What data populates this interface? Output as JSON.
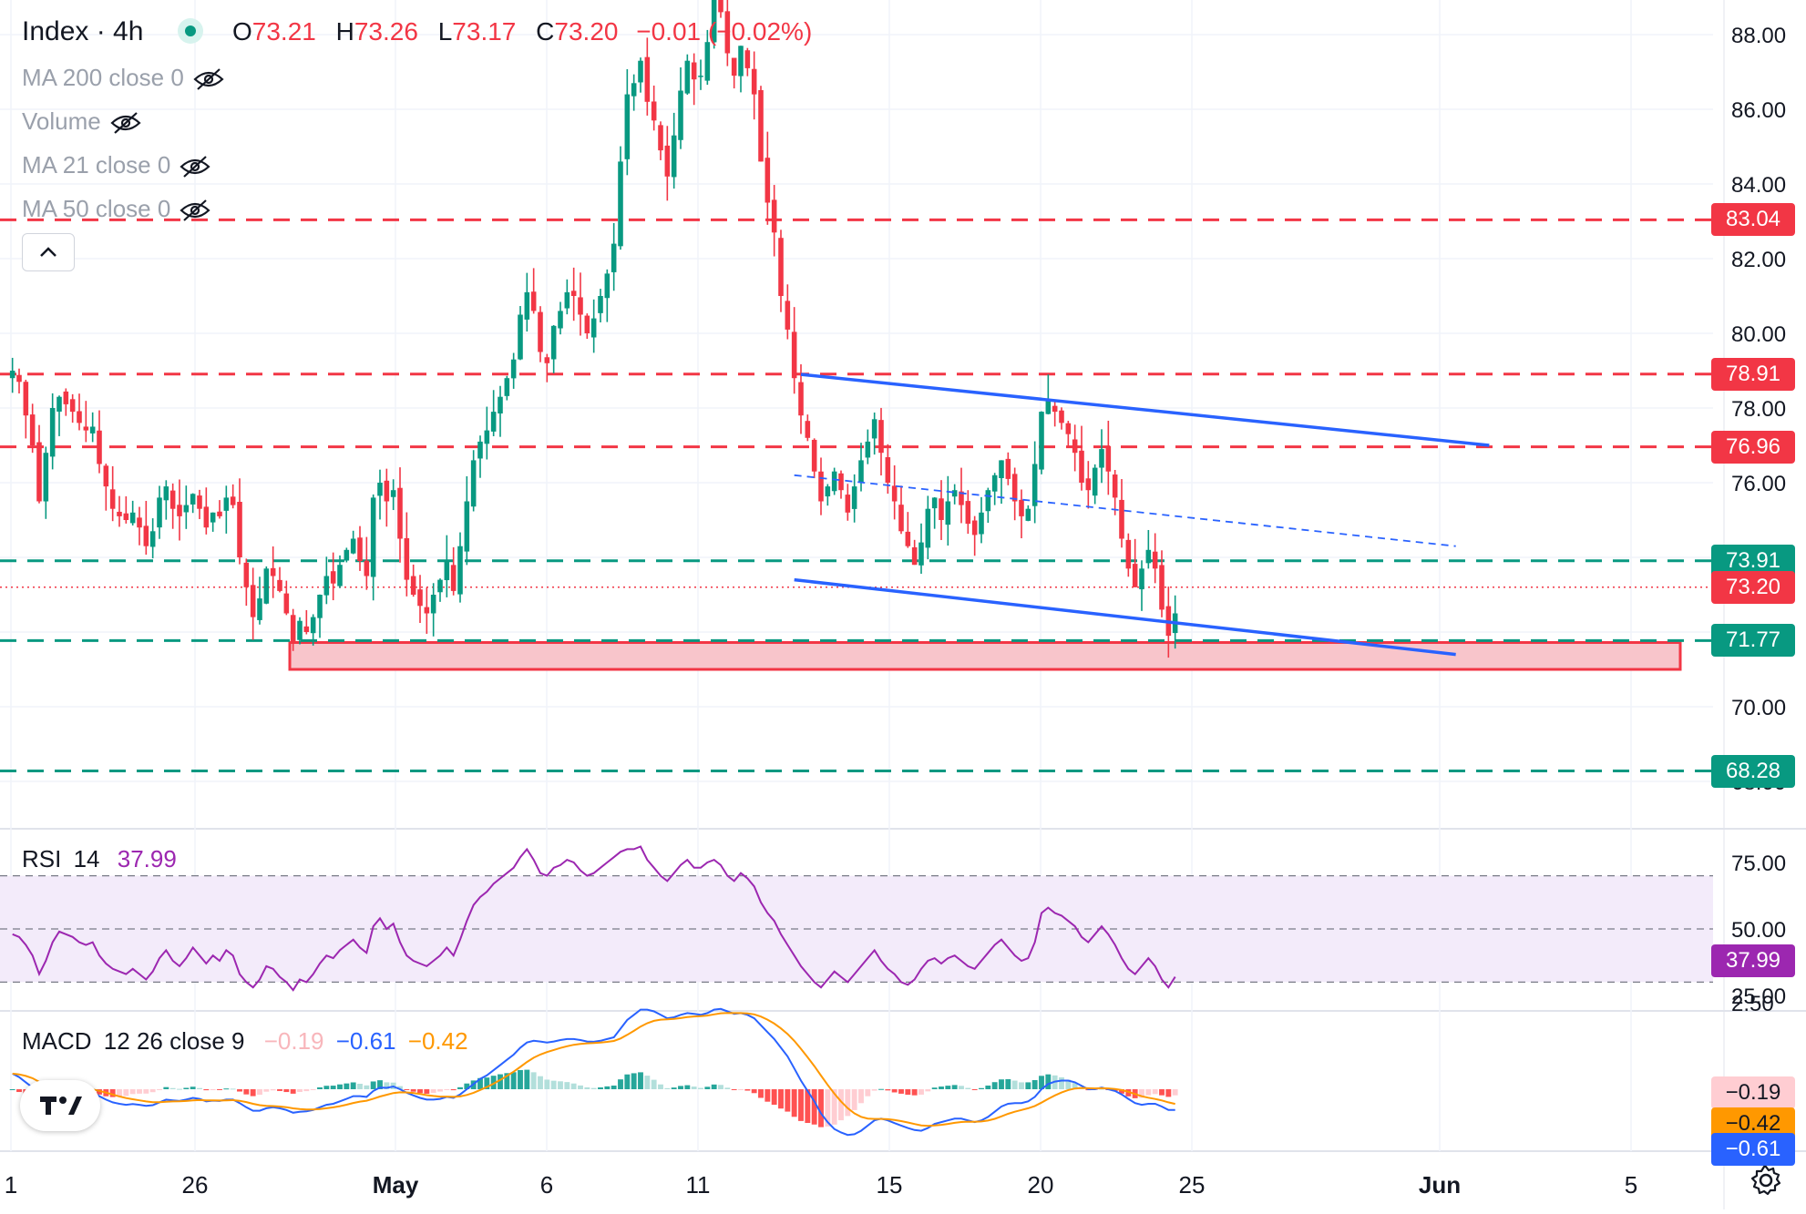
{
  "header": {
    "symbol": "Index · 4h",
    "ohlc": {
      "o_label": "O",
      "o_value": "73.21",
      "h_label": "H",
      "h_value": "73.26",
      "l_label": "L",
      "l_value": "73.17",
      "c_label": "C",
      "c_value": "73.20",
      "change": "−0.01 (−0.02%)"
    },
    "indicators": [
      {
        "label": "MA 200 close 0",
        "icon": "eye-off-icon"
      },
      {
        "label": "Volume",
        "icon": "eye-off-icon"
      },
      {
        "label": "MA 21 close 0",
        "icon": "eye-off-icon"
      },
      {
        "label": "MA 50 close 0",
        "icon": "eye-off-icon"
      }
    ],
    "collapse_icon": "chevron-up-icon"
  },
  "colors": {
    "up": "#089981",
    "down": "#f23645",
    "trendline": "#2962ff",
    "red_level": "#f23645",
    "green_level": "#089981",
    "rsi": "#9c27b0",
    "macd": "#2962ff",
    "signal": "#ff9800",
    "zone_fill": "#f8c5cb"
  },
  "chart_data": [
    {
      "type": "candlestick",
      "name": "price",
      "x_ticks": [
        "1",
        "26",
        "May",
        "6",
        "11",
        "15",
        "20",
        "25",
        "Jun",
        "5"
      ],
      "y_ticks": [
        "88.00",
        "86.00",
        "84.00",
        "82.00",
        "80.00",
        "78.00",
        "76.00",
        "74.00",
        "72.00",
        "70.00",
        "68.00"
      ],
      "ylim": [
        67.0,
        89.0
      ],
      "last_price": "73.20",
      "last_price_value": 73.2,
      "resistance_levels": [
        {
          "label": "83.04",
          "value": 83.04
        },
        {
          "label": "78.91",
          "value": 78.91
        },
        {
          "label": "76.96",
          "value": 76.96
        }
      ],
      "support_levels": [
        {
          "label": "73.91",
          "value": 73.91
        },
        {
          "label": "71.77",
          "value": 71.77
        },
        {
          "label": "68.28",
          "value": 68.28
        }
      ],
      "support_zone": {
        "top": 71.72,
        "bottom": 71.0,
        "from_bar": 38,
        "to_bar": 222
      },
      "channel": {
        "upper": {
          "from_bar": 118,
          "from_value": 78.9,
          "to_bar": 221,
          "to_value": 77.0
        },
        "lower": {
          "from_bar": 117,
          "from_value": 73.4,
          "to_bar": 216,
          "to_value": 71.4
        },
        "mid": {
          "from_bar": 117,
          "from_value": 76.2,
          "to_bar": 216,
          "to_value": 74.3
        }
      },
      "bar_count": 240,
      "closes": [
        79.0,
        78.7,
        77.8,
        77.0,
        75.5,
        76.8,
        78.0,
        78.3,
        78.1,
        77.9,
        77.6,
        77.4,
        77.5,
        76.5,
        75.9,
        75.3,
        75.1,
        75.0,
        75.2,
        74.8,
        74.3,
        74.7,
        75.6,
        75.9,
        75.3,
        75.1,
        75.4,
        75.7,
        75.3,
        74.8,
        75.2,
        75.1,
        75.6,
        75.4,
        74.0,
        73.2,
        72.4,
        72.9,
        73.7,
        73.5,
        73.1,
        72.5,
        71.7,
        72.3,
        72.0,
        72.4,
        73.0,
        73.5,
        73.3,
        73.8,
        74.2,
        74.5,
        73.9,
        73.5,
        75.6,
        76.0,
        75.5,
        75.8,
        74.5,
        73.4,
        73.0,
        72.7,
        72.5,
        73.0,
        73.4,
        73.9,
        73.1,
        74.3,
        75.5,
        76.6,
        77.1,
        77.4,
        77.9,
        78.3,
        78.8,
        79.3,
        80.5,
        81.1,
        80.6,
        79.5,
        79.2,
        80.2,
        80.6,
        81.1,
        81.0,
        80.5,
        80.0,
        80.4,
        81.0,
        81.6,
        82.4,
        84.6,
        86.4,
        86.7,
        87.3,
        86.2,
        85.7,
        84.9,
        84.2,
        85.3,
        86.5,
        87.3,
        86.8,
        86.9,
        87.8,
        89.0,
        88.6,
        87.5,
        86.9,
        87.7,
        87.1,
        86.4,
        84.6,
        83.5,
        82.7,
        81.0,
        80.1,
        78.8,
        77.8,
        77.2,
        76.3,
        75.5,
        75.9,
        76.3,
        75.8,
        75.2,
        75.9,
        76.6,
        77.1,
        77.7,
        76.8,
        76.0,
        75.5,
        74.7,
        74.3,
        73.8,
        74.4,
        75.3,
        75.6,
        75.0,
        75.5,
        75.8,
        75.4,
        74.9,
        74.6,
        75.2,
        75.8,
        76.2,
        76.6,
        76.1,
        75.5,
        75.1,
        75.3,
        76.5,
        77.9,
        78.2,
        77.9,
        77.6,
        77.3,
        76.8,
        76.0,
        75.8,
        76.4,
        76.9,
        76.3,
        75.6,
        74.5,
        73.7,
        73.2,
        73.7,
        74.2,
        73.7,
        72.6,
        71.9,
        72.5,
        73.6,
        74.8,
        75.3,
        75.6,
        75.8,
        75.5,
        75.3,
        75.4,
        75.6,
        75.9,
        75.5,
        75.1,
        75.4,
        75.9,
        75.3,
        75.0,
        74.8,
        75.1,
        75.9,
        76.5,
        76.9,
        76.2,
        75.7,
        75.1,
        74.8,
        74.3,
        73.9,
        73.5,
        73.2,
        73.2,
        73.4,
        73.2,
        73.2,
        73.2,
        73.2,
        73.2,
        73.2,
        73.2,
        73.2,
        73.2,
        73.2,
        73.2,
        73.2,
        73.2,
        73.2,
        73.2,
        73.2,
        73.2,
        73.2,
        73.2,
        73.2,
        73.2,
        73.2,
        73.2,
        73.2,
        73.2,
        73.2,
        73.2,
        73.2,
        73.2,
        73.2,
        73.2
      ]
    },
    {
      "type": "line",
      "name": "RSI 14",
      "label": "RSI",
      "length": "14",
      "value": "37.99",
      "y_ticks": [
        "75.00",
        "50.00",
        "25.00"
      ],
      "ylim": [
        20,
        85
      ],
      "bands": [
        70,
        50,
        30
      ],
      "values": [
        48,
        47,
        44,
        40,
        33,
        38,
        45,
        49,
        48,
        47,
        45,
        44,
        45,
        40,
        37,
        35,
        34,
        33,
        35,
        33,
        31,
        34,
        39,
        42,
        38,
        36,
        39,
        43,
        40,
        37,
        40,
        38,
        42,
        40,
        33,
        30,
        28,
        31,
        36,
        35,
        32,
        30,
        27,
        31,
        30,
        33,
        37,
        40,
        39,
        42,
        44,
        46,
        43,
        41,
        51,
        54,
        50,
        52,
        45,
        40,
        38,
        37,
        36,
        38,
        40,
        43,
        40,
        46,
        53,
        59,
        62,
        64,
        67,
        69,
        71,
        73,
        77,
        80,
        76,
        71,
        70,
        73,
        74,
        76,
        75,
        72,
        70,
        71,
        73,
        75,
        77,
        79,
        80,
        80,
        81,
        76,
        73,
        70,
        68,
        71,
        74,
        76,
        73,
        73,
        75,
        76,
        74,
        70,
        68,
        71,
        69,
        66,
        60,
        56,
        53,
        48,
        44,
        40,
        36,
        33,
        30,
        28,
        31,
        34,
        32,
        30,
        33,
        36,
        39,
        42,
        38,
        35,
        33,
        30,
        29,
        31,
        35,
        38,
        39,
        37,
        39,
        40,
        38,
        36,
        35,
        38,
        41,
        44,
        46,
        43,
        40,
        38,
        39,
        45,
        56,
        58,
        56,
        55,
        53,
        51,
        47,
        45,
        48,
        51,
        48,
        44,
        39,
        35,
        33,
        36,
        39,
        36,
        31,
        28,
        32,
        38,
        45,
        48,
        49,
        50,
        49,
        48,
        49,
        50,
        51,
        49,
        47,
        48,
        51,
        48,
        46,
        45,
        47,
        52,
        58,
        61,
        56,
        53,
        49,
        47,
        44,
        42,
        40,
        38,
        38,
        39,
        38,
        38,
        38,
        38,
        38,
        38,
        38,
        38,
        38,
        38,
        38,
        38,
        38,
        38,
        38,
        38,
        38,
        38,
        38,
        38,
        38,
        38,
        38,
        38,
        38,
        38,
        38,
        38,
        38,
        38,
        38,
        38,
        38,
        38,
        38
      ]
    },
    {
      "type": "bar+line",
      "name": "MACD 12 26 close 9",
      "label": "MACD",
      "params": "12 26 close 9",
      "hist_value": "−0.19",
      "macd_value": "−0.61",
      "signal_value": "−0.42",
      "y_ticks": [
        "2.50"
      ],
      "ylim": [
        -1.8,
        2.8
      ],
      "macd": [
        0.45,
        0.35,
        0.2,
        0.05,
        -0.2,
        -0.25,
        -0.15,
        -0.05,
        0.0,
        0.02,
        0.0,
        -0.05,
        -0.08,
        -0.2,
        -0.3,
        -0.38,
        -0.42,
        -0.45,
        -0.43,
        -0.45,
        -0.48,
        -0.46,
        -0.38,
        -0.3,
        -0.32,
        -0.34,
        -0.3,
        -0.25,
        -0.28,
        -0.35,
        -0.33,
        -0.34,
        -0.3,
        -0.3,
        -0.4,
        -0.52,
        -0.62,
        -0.62,
        -0.55,
        -0.52,
        -0.55,
        -0.6,
        -0.68,
        -0.65,
        -0.64,
        -0.6,
        -0.52,
        -0.45,
        -0.42,
        -0.35,
        -0.28,
        -0.2,
        -0.2,
        -0.22,
        -0.05,
        0.05,
        0.04,
        0.08,
        0.0,
        -0.1,
        -0.18,
        -0.25,
        -0.3,
        -0.3,
        -0.28,
        -0.22,
        -0.25,
        -0.15,
        0.0,
        0.15,
        0.3,
        0.4,
        0.55,
        0.7,
        0.85,
        1.0,
        1.2,
        1.35,
        1.4,
        1.38,
        1.35,
        1.38,
        1.42,
        1.45,
        1.45,
        1.42,
        1.38,
        1.37,
        1.4,
        1.45,
        1.5,
        1.75,
        2.0,
        2.15,
        2.3,
        2.3,
        2.25,
        2.15,
        2.05,
        2.08,
        2.15,
        2.2,
        2.18,
        2.15,
        2.2,
        2.3,
        2.32,
        2.25,
        2.18,
        2.2,
        2.15,
        2.05,
        1.85,
        1.65,
        1.45,
        1.2,
        0.95,
        0.6,
        0.25,
        -0.05,
        -0.35,
        -0.7,
        -0.95,
        -1.15,
        -1.25,
        -1.32,
        -1.3,
        -1.2,
        -1.05,
        -0.9,
        -0.85,
        -0.9,
        -0.98,
        -1.05,
        -1.12,
        -1.18,
        -1.2,
        -1.12,
        -1.0,
        -0.95,
        -0.9,
        -0.85,
        -0.85,
        -0.9,
        -0.95,
        -0.9,
        -0.8,
        -0.65,
        -0.5,
        -0.42,
        -0.4,
        -0.4,
        -0.35,
        -0.22,
        0.0,
        0.15,
        0.22,
        0.25,
        0.25,
        0.2,
        0.1,
        0.0,
        0.0,
        0.05,
        0.0,
        -0.05,
        -0.15,
        -0.28,
        -0.4,
        -0.45,
        -0.42,
        -0.42,
        -0.5,
        -0.6,
        -0.6,
        -0.5,
        -0.32,
        -0.15,
        -0.05,
        0.02,
        0.05,
        0.05,
        0.06,
        0.08,
        0.1,
        0.08,
        0.05,
        0.05,
        0.08,
        0.06,
        0.02,
        0.0,
        0.02,
        0.08,
        0.15,
        0.18,
        0.15,
        0.1,
        0.02,
        -0.05,
        -0.15,
        -0.25,
        -0.35,
        -0.45,
        -0.52,
        -0.57,
        -0.6,
        -0.61,
        -0.61,
        -0.61,
        -0.61,
        -0.61,
        -0.61,
        -0.61,
        -0.61,
        -0.61,
        -0.61,
        -0.61,
        -0.61,
        -0.61,
        -0.61,
        -0.61,
        -0.61,
        -0.61,
        -0.61,
        -0.61,
        -0.61,
        -0.61,
        -0.61,
        -0.61,
        -0.61,
        -0.61,
        -0.61,
        -0.61,
        -0.61,
        -0.61,
        -0.61,
        -0.61,
        -0.61,
        -0.61
      ]
    }
  ],
  "x_axis": {
    "settings_icon": "gear-icon"
  },
  "branding": {
    "logo": "tradingview-logo-icon"
  }
}
